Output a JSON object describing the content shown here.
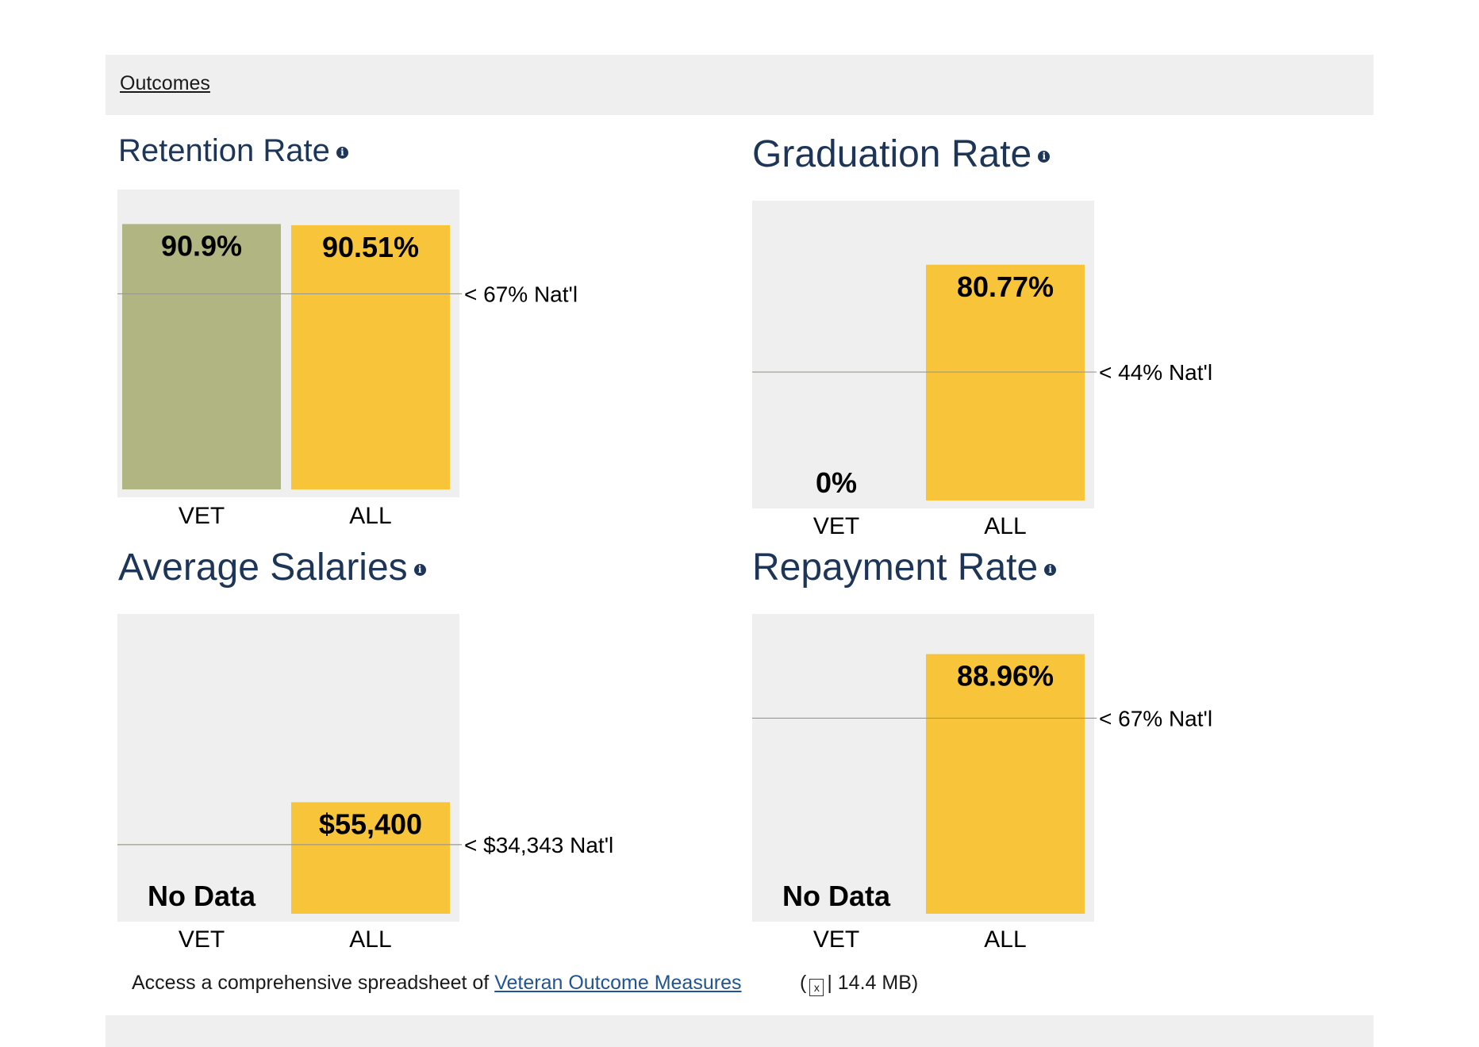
{
  "section": {
    "title": "Outcomes"
  },
  "charts": [
    {
      "title": "Retention Rate",
      "chart_data": {
        "type": "bar",
        "categories": [
          "VET",
          "ALL"
        ],
        "values": [
          90.9,
          90.51
        ],
        "labels": [
          "90.9%",
          "90.51%"
        ],
        "colors": [
          "#b1b581",
          "#f8c53a"
        ],
        "national_value": 67,
        "national_label": "< 67% Nat'l",
        "ylim": [
          0,
          100
        ]
      }
    },
    {
      "title": "Graduation Rate",
      "chart_data": {
        "type": "bar",
        "categories": [
          "VET",
          "ALL"
        ],
        "values": [
          0,
          80.77
        ],
        "labels": [
          "0%",
          "80.77%"
        ],
        "colors": [
          "#b1b581",
          "#f8c53a"
        ],
        "national_value": 44,
        "national_label": "< 44% Nat'l",
        "ylim": [
          0,
          100
        ]
      }
    },
    {
      "title": "Average Salaries",
      "chart_data": {
        "type": "bar",
        "categories": [
          "VET",
          "ALL"
        ],
        "values": [
          null,
          55400
        ],
        "labels": [
          "No Data",
          "$55,400"
        ],
        "colors": [
          "#b1b581",
          "#f8c53a"
        ],
        "national_value": 34343,
        "national_label": "< $34,343 Nat'l",
        "ylim": [
          0,
          145000
        ]
      }
    },
    {
      "title": "Repayment Rate",
      "chart_data": {
        "type": "bar",
        "categories": [
          "VET",
          "ALL"
        ],
        "values": [
          null,
          88.96
        ],
        "labels": [
          "No Data",
          "88.96%"
        ],
        "colors": [
          "#b1b581",
          "#f8c53a"
        ],
        "national_value": 67,
        "national_label": "< 67% Nat'l",
        "ylim": [
          0,
          100
        ]
      }
    }
  ],
  "footnote": {
    "text": "Access a comprehensive spreadsheet of",
    "link": "Veteran Outcome Measures",
    "open_paren": "(",
    "file_icon": "x",
    "file_size": "| 14.4 MB)"
  }
}
